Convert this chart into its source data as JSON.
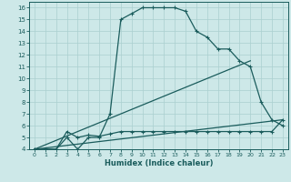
{
  "xlabel": "Humidex (Indice chaleur)",
  "xlim": [
    -0.5,
    23.5
  ],
  "ylim": [
    4,
    16.5
  ],
  "xticks": [
    0,
    1,
    2,
    3,
    4,
    5,
    6,
    7,
    8,
    9,
    10,
    11,
    12,
    13,
    14,
    15,
    16,
    17,
    18,
    19,
    20,
    21,
    22,
    23
  ],
  "yticks": [
    4,
    5,
    6,
    7,
    8,
    9,
    10,
    11,
    12,
    13,
    14,
    15,
    16
  ],
  "bg_color": "#cde8e8",
  "line_color": "#1a5c5c",
  "grid_color": "#aacfcf",
  "line1_x": [
    0,
    1,
    2,
    3,
    4,
    5,
    6,
    7,
    8,
    9,
    10,
    11,
    12,
    13,
    14,
    15,
    16,
    17,
    18,
    19,
    20,
    21,
    22,
    23
  ],
  "line1_y": [
    4,
    4,
    4,
    5,
    4,
    5,
    5,
    7,
    15,
    15.5,
    16,
    16,
    16,
    16,
    15.7,
    14,
    13.5,
    12.5,
    12.5,
    11.5,
    11,
    8,
    6.5,
    6
  ],
  "line2_x": [
    0,
    1,
    2,
    3,
    4,
    5,
    6,
    7,
    8,
    9,
    10,
    11,
    12,
    13,
    14,
    15,
    16,
    17,
    18,
    19,
    20,
    21,
    22,
    23
  ],
  "line2_y": [
    4,
    4,
    4,
    5.5,
    5,
    5.2,
    5.1,
    5.3,
    5.5,
    5.5,
    5.5,
    5.5,
    5.5,
    5.5,
    5.5,
    5.5,
    5.5,
    5.5,
    5.5,
    5.5,
    5.5,
    5.5,
    5.5,
    6.5
  ],
  "line3_x": [
    0,
    23
  ],
  "line3_y": [
    4,
    6.5
  ],
  "line4_x": [
    0,
    20
  ],
  "line4_y": [
    4,
    11.5
  ],
  "tick_fontsize": 5,
  "xlabel_fontsize": 6
}
